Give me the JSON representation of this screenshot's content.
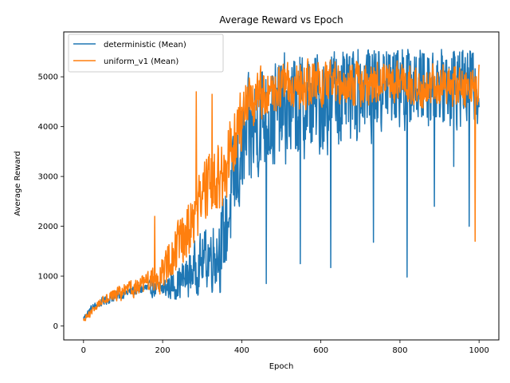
{
  "chart_data": {
    "type": "line",
    "title": "Average Reward vs Epoch",
    "xlabel": "Epoch",
    "ylabel": "Average Reward",
    "xlim": [
      -50,
      1050
    ],
    "ylim": [
      -280,
      5900
    ],
    "xticks": [
      0,
      200,
      400,
      600,
      800,
      1000
    ],
    "yticks": [
      0,
      1000,
      2000,
      3000,
      4000,
      5000
    ],
    "grid": false,
    "legend_position": "upper left",
    "series": [
      {
        "name": "deterministic (Mean)",
        "color": "#1f77b4",
        "keypoints": [
          [
            0,
            150
          ],
          [
            20,
            350
          ],
          [
            50,
            500
          ],
          [
            100,
            650
          ],
          [
            150,
            750
          ],
          [
            200,
            750
          ],
          [
            250,
            900
          ],
          [
            300,
            1300
          ],
          [
            350,
            1600
          ],
          [
            400,
            3500
          ],
          [
            450,
            4200
          ],
          [
            500,
            4300
          ],
          [
            550,
            4400
          ],
          [
            600,
            4500
          ],
          [
            650,
            4700
          ],
          [
            700,
            4800
          ],
          [
            750,
            4850
          ],
          [
            800,
            4900
          ],
          [
            850,
            4950
          ],
          [
            900,
            4950
          ],
          [
            950,
            4950
          ],
          [
            1000,
            4900
          ]
        ],
        "noise": [
          [
            0,
            80
          ],
          [
            150,
            150
          ],
          [
            200,
            250
          ],
          [
            300,
            700
          ],
          [
            400,
            1400
          ],
          [
            700,
            1300
          ],
          [
            1000,
            1100
          ]
        ],
        "dips": [
          [
            462,
            850
          ],
          [
            548,
            1250
          ],
          [
            625,
            1170
          ],
          [
            733,
            1680
          ],
          [
            818,
            980
          ],
          [
            887,
            2400
          ],
          [
            936,
            3200
          ],
          [
            975,
            2000
          ]
        ]
      },
      {
        "name": "uniform_v1 (Mean)",
        "color": "#ff7f0e",
        "keypoints": [
          [
            0,
            100
          ],
          [
            50,
            550
          ],
          [
            100,
            680
          ],
          [
            150,
            800
          ],
          [
            200,
            1050
          ],
          [
            250,
            1700
          ],
          [
            300,
            2600
          ],
          [
            350,
            3000
          ],
          [
            400,
            4200
          ],
          [
            450,
            4700
          ],
          [
            500,
            4750
          ],
          [
            550,
            4800
          ],
          [
            600,
            4850
          ],
          [
            650,
            4850
          ],
          [
            700,
            4850
          ],
          [
            750,
            4850
          ],
          [
            800,
            4850
          ],
          [
            850,
            4850
          ],
          [
            900,
            4850
          ],
          [
            950,
            4800
          ],
          [
            1000,
            4800
          ]
        ],
        "noise": [
          [
            0,
            80
          ],
          [
            150,
            250
          ],
          [
            250,
            700
          ],
          [
            350,
            900
          ],
          [
            450,
            600
          ],
          [
            1000,
            500
          ]
        ],
        "spikes": [
          [
            180,
            2200
          ],
          [
            285,
            4700
          ],
          [
            325,
            4650
          ],
          [
            990,
            1700
          ]
        ]
      }
    ]
  }
}
